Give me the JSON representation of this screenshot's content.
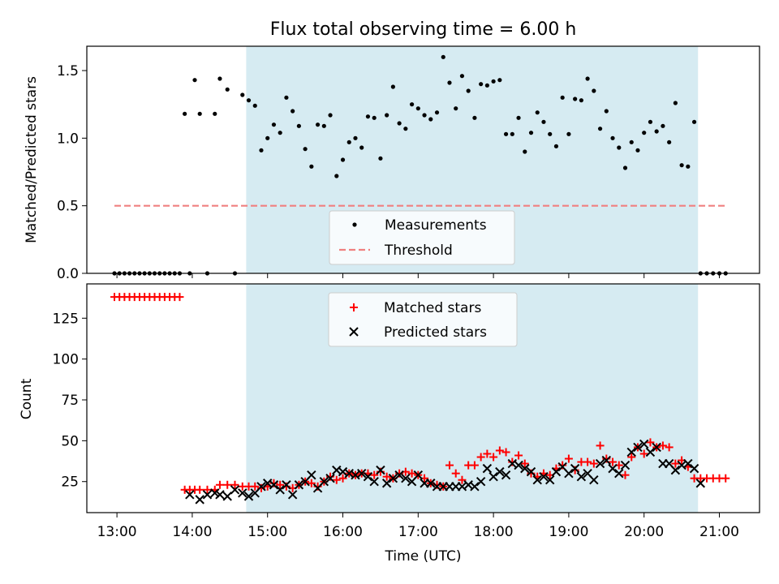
{
  "chart_data": [
    {
      "type": "scatter",
      "title": "Flux total observing time = 6.00 h",
      "xlabel": "",
      "ylabel": "Matched/Predicted stars",
      "ylim": [
        0,
        1.68
      ],
      "xlim": [
        "12:36",
        "21:32"
      ],
      "x_ticks": [
        "13:00",
        "14:00",
        "15:00",
        "16:00",
        "17:00",
        "18:00",
        "19:00",
        "20:00",
        "21:00"
      ],
      "y_ticks": [
        "0.0",
        "0.5",
        "1.0",
        "1.5"
      ],
      "shaded_interval": [
        "14:43",
        "20:43"
      ],
      "shade_color": "#add8e6",
      "legend_position": "lower center",
      "legend": [
        "Measurements",
        "Threshold"
      ],
      "threshold": {
        "value": 0.5,
        "x_start": "12:58",
        "x_end": "21:05",
        "color": "#f08080"
      },
      "series": [
        {
          "name": "Measurements",
          "marker": "dot",
          "color": "#000000",
          "x": [
            "12:58",
            "13:02",
            "13:06",
            "13:10",
            "13:14",
            "13:18",
            "13:22",
            "13:26",
            "13:30",
            "13:34",
            "13:38",
            "13:42",
            "13:46",
            "13:50",
            "13:54",
            "13:58",
            "14:02",
            "14:06",
            "14:12",
            "14:18",
            "14:22",
            "14:28",
            "14:34",
            "14:40",
            "14:45",
            "14:50",
            "14:55",
            "15:00",
            "15:05",
            "15:10",
            "15:15",
            "15:20",
            "15:25",
            "15:30",
            "15:35",
            "15:40",
            "15:45",
            "15:50",
            "15:55",
            "16:00",
            "16:05",
            "16:10",
            "16:15",
            "16:20",
            "16:25",
            "16:30",
            "16:35",
            "16:40",
            "16:45",
            "16:50",
            "16:55",
            "17:00",
            "17:05",
            "17:10",
            "17:15",
            "17:20",
            "17:25",
            "17:30",
            "17:35",
            "17:40",
            "17:45",
            "17:50",
            "17:55",
            "18:00",
            "18:05",
            "18:10",
            "18:15",
            "18:20",
            "18:25",
            "18:30",
            "18:35",
            "18:40",
            "18:45",
            "18:50",
            "18:55",
            "19:00",
            "19:05",
            "19:10",
            "19:15",
            "19:20",
            "19:25",
            "19:30",
            "19:35",
            "19:40",
            "19:45",
            "19:50",
            "19:55",
            "20:00",
            "20:05",
            "20:10",
            "20:15",
            "20:20",
            "20:25",
            "20:30",
            "20:35",
            "20:40",
            "20:45",
            "20:50",
            "20:55",
            "21:00",
            "21:05"
          ],
          "y": [
            0,
            0,
            0,
            0,
            0,
            0,
            0,
            0,
            0,
            0,
            0,
            0,
            0,
            0,
            1.18,
            0,
            1.43,
            1.18,
            0,
            1.18,
            1.44,
            1.36,
            0,
            1.32,
            1.28,
            1.24,
            0.91,
            1.0,
            1.1,
            1.04,
            1.3,
            1.2,
            1.09,
            0.92,
            0.79,
            1.1,
            1.09,
            1.17,
            0.72,
            0.84,
            0.97,
            1.0,
            0.93,
            1.16,
            1.15,
            0.85,
            1.17,
            1.38,
            1.11,
            1.07,
            1.25,
            1.22,
            1.17,
            1.14,
            1.19,
            1.6,
            1.41,
            1.22,
            1.46,
            1.35,
            1.15,
            1.4,
            1.39,
            1.42,
            1.43,
            1.03,
            1.03,
            1.15,
            0.9,
            1.04,
            1.19,
            1.12,
            1.03,
            0.94,
            1.3,
            1.03,
            1.29,
            1.28,
            1.44,
            1.35,
            1.07,
            1.2,
            1.0,
            0.93,
            0.78,
            0.97,
            0.91,
            1.04,
            1.12,
            1.05,
            1.09,
            0.97,
            1.26,
            0.8,
            0.79,
            1.12,
            0,
            0,
            0,
            0,
            0
          ]
        }
      ]
    },
    {
      "type": "scatter",
      "title": "",
      "xlabel": "Time (UTC)",
      "ylabel": "Count",
      "ylim": [
        6,
        146
      ],
      "xlim": [
        "12:36",
        "21:32"
      ],
      "x_ticks": [
        "13:00",
        "14:00",
        "15:00",
        "16:00",
        "17:00",
        "18:00",
        "19:00",
        "20:00",
        "21:00"
      ],
      "y_ticks": [
        "25",
        "50",
        "75",
        "100",
        "125"
      ],
      "shaded_interval": [
        "14:43",
        "20:43"
      ],
      "shade_color": "#add8e6",
      "legend_position": "upper center",
      "legend": [
        "Matched stars",
        "Predicted stars"
      ],
      "series": [
        {
          "name": "Matched stars",
          "marker": "plus",
          "color": "#ff0000",
          "x": [
            "12:58",
            "13:02",
            "13:06",
            "13:10",
            "13:14",
            "13:18",
            "13:22",
            "13:26",
            "13:30",
            "13:34",
            "13:38",
            "13:42",
            "13:46",
            "13:50",
            "13:54",
            "13:58",
            "14:02",
            "14:06",
            "14:12",
            "14:18",
            "14:22",
            "14:28",
            "14:34",
            "14:40",
            "14:45",
            "14:50",
            "14:55",
            "15:00",
            "15:05",
            "15:10",
            "15:15",
            "15:20",
            "15:25",
            "15:30",
            "15:35",
            "15:40",
            "15:45",
            "15:50",
            "15:55",
            "16:00",
            "16:05",
            "16:10",
            "16:15",
            "16:20",
            "16:25",
            "16:30",
            "16:35",
            "16:40",
            "16:45",
            "16:50",
            "16:55",
            "17:00",
            "17:05",
            "17:10",
            "17:15",
            "17:20",
            "17:25",
            "17:30",
            "17:35",
            "17:40",
            "17:45",
            "17:50",
            "17:55",
            "18:00",
            "18:05",
            "18:10",
            "18:15",
            "18:20",
            "18:25",
            "18:30",
            "18:35",
            "18:40",
            "18:45",
            "18:50",
            "18:55",
            "19:00",
            "19:05",
            "19:10",
            "19:15",
            "19:20",
            "19:25",
            "19:30",
            "19:35",
            "19:40",
            "19:45",
            "19:50",
            "19:55",
            "20:00",
            "20:05",
            "20:10",
            "20:15",
            "20:20",
            "20:25",
            "20:30",
            "20:35",
            "20:40",
            "20:45",
            "20:50",
            "20:55",
            "21:00",
            "21:05"
          ],
          "y": [
            138,
            138,
            138,
            138,
            138,
            138,
            138,
            138,
            138,
            138,
            138,
            138,
            138,
            138,
            20,
            20,
            20,
            20,
            20,
            20,
            23,
            23,
            23,
            22,
            22,
            22,
            21,
            22,
            24,
            23,
            22,
            21,
            23,
            25,
            24,
            22,
            25,
            28,
            26,
            27,
            30,
            29,
            30,
            30,
            29,
            31,
            28,
            27,
            30,
            31,
            30,
            29,
            27,
            24,
            23,
            22,
            35,
            30,
            26,
            35,
            35,
            40,
            42,
            40,
            44,
            43,
            37,
            41,
            36,
            30,
            28,
            30,
            29,
            33,
            35,
            39,
            32,
            37,
            37,
            36,
            47,
            39,
            37,
            35,
            29,
            40,
            46,
            42,
            49,
            46,
            47,
            46,
            36,
            38,
            34,
            27,
            27,
            27,
            27,
            27,
            27
          ]
        },
        {
          "name": "Predicted stars",
          "marker": "x",
          "color": "#000000",
          "x": [
            "13:58",
            "14:06",
            "14:12",
            "14:18",
            "14:22",
            "14:28",
            "14:34",
            "14:40",
            "14:45",
            "14:50",
            "14:55",
            "15:00",
            "15:05",
            "15:10",
            "15:15",
            "15:20",
            "15:25",
            "15:30",
            "15:35",
            "15:40",
            "15:45",
            "15:50",
            "15:55",
            "16:00",
            "16:05",
            "16:10",
            "16:15",
            "16:20",
            "16:25",
            "16:30",
            "16:35",
            "16:40",
            "16:45",
            "16:50",
            "16:55",
            "17:00",
            "17:05",
            "17:10",
            "17:15",
            "17:20",
            "17:25",
            "17:30",
            "17:35",
            "17:40",
            "17:45",
            "17:50",
            "17:55",
            "18:00",
            "18:05",
            "18:10",
            "18:15",
            "18:20",
            "18:25",
            "18:30",
            "18:35",
            "18:40",
            "18:45",
            "18:50",
            "18:55",
            "19:00",
            "19:05",
            "19:10",
            "19:15",
            "19:20",
            "19:25",
            "19:30",
            "19:35",
            "19:40",
            "19:45",
            "19:50",
            "19:55",
            "20:00",
            "20:05",
            "20:10",
            "20:15",
            "20:20",
            "20:25",
            "20:30",
            "20:35",
            "20:40",
            "20:45"
          ],
          "y": [
            17,
            14,
            17,
            18,
            17,
            16,
            20,
            18,
            16,
            18,
            22,
            24,
            23,
            20,
            23,
            17,
            23,
            25,
            29,
            21,
            25,
            27,
            32,
            31,
            30,
            29,
            30,
            28,
            25,
            32,
            24,
            27,
            29,
            27,
            25,
            29,
            24,
            24,
            22,
            22,
            22,
            22,
            22,
            23,
            22,
            25,
            33,
            28,
            31,
            29,
            36,
            35,
            33,
            31,
            26,
            28,
            26,
            31,
            34,
            30,
            33,
            28,
            30,
            26,
            36,
            38,
            33,
            30,
            35,
            43,
            46,
            48,
            43,
            46,
            36,
            36,
            32,
            35,
            36,
            33,
            24
          ]
        }
      ]
    }
  ]
}
